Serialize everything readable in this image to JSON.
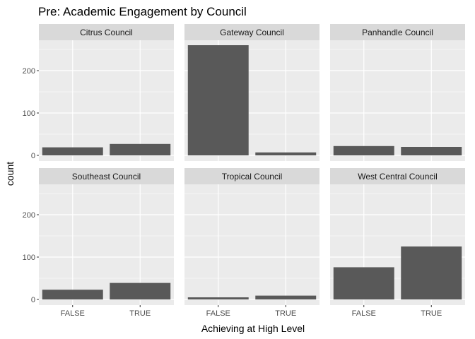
{
  "chart_data": {
    "type": "bar",
    "title": "Pre: Academic Engagement by Council",
    "xlabel": "Achieving at High Level",
    "ylabel": "count",
    "categories": [
      "FALSE",
      "TRUE"
    ],
    "ylim": [
      0,
      270
    ],
    "yticks": [
      0,
      100,
      200
    ],
    "grid": true,
    "colors": {
      "bar": "#595959",
      "panel_bg": "#ebebeb",
      "strip_bg": "#d9d9d9",
      "grid": "#ffffff"
    },
    "facets": [
      {
        "name": "Citrus Council",
        "values": [
          19,
          27
        ]
      },
      {
        "name": "Gateway Council",
        "values": [
          260,
          7
        ]
      },
      {
        "name": "Panhandle Council",
        "values": [
          22,
          20
        ]
      },
      {
        "name": "Southeast Council",
        "values": [
          23,
          39
        ]
      },
      {
        "name": "Tropical Council",
        "values": [
          5,
          9
        ]
      },
      {
        "name": "West Central Council",
        "values": [
          76,
          125
        ]
      }
    ]
  }
}
